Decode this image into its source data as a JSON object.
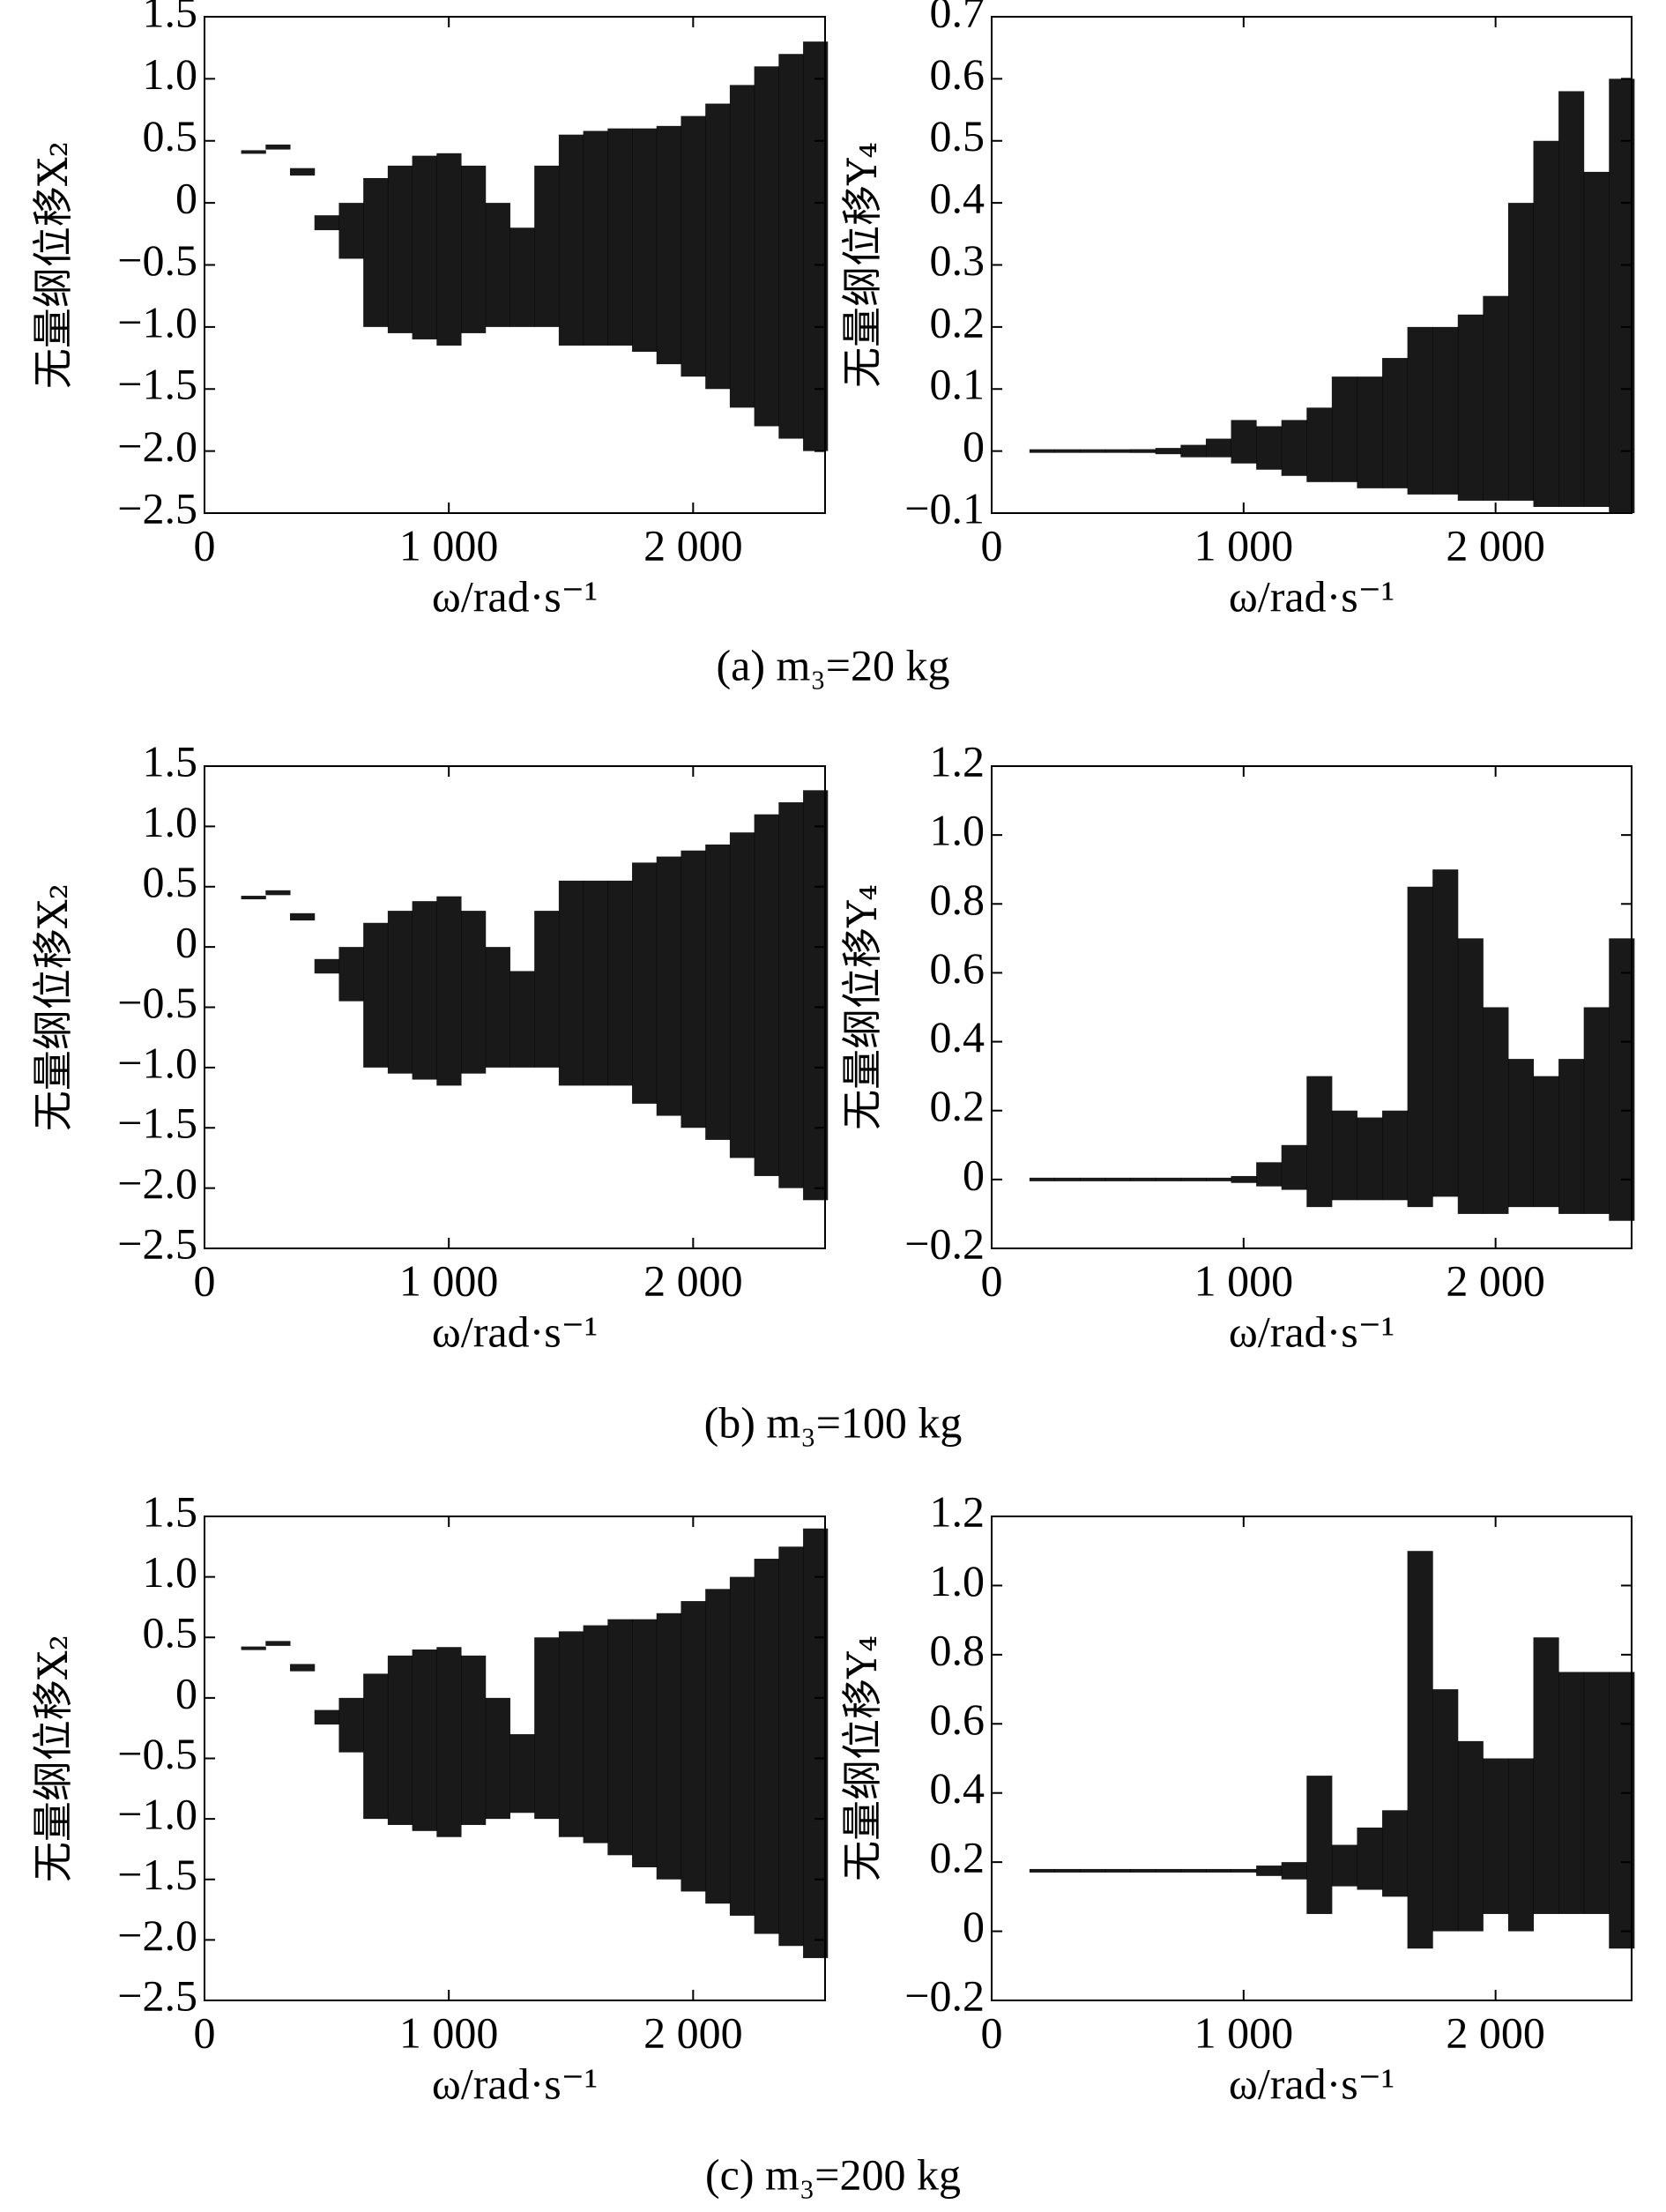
{
  "chart_data": [
    {
      "type": "range",
      "ylabel": "无量纲位移X₂",
      "xlabel": "ω/rad·s⁻¹",
      "color": "#000000",
      "xlim": [
        0,
        2540
      ],
      "ylim": [
        -2.5,
        1.5
      ],
      "xticks": [
        0,
        {
          "value": 1000,
          "label": "1 000"
        },
        {
          "value": 2000,
          "label": "2 000"
        }
      ],
      "yticks": [
        {
          "value": -2.5,
          "label": "−2.5"
        },
        {
          "value": -2.0,
          "label": "−2.0"
        },
        {
          "value": -1.5,
          "label": "−1.5"
        },
        {
          "value": -1.0,
          "label": "−1.0"
        },
        {
          "value": -0.5,
          "label": "−0.5"
        },
        0,
        0.5,
        {
          "value": 1.0,
          "label": "1.0"
        },
        1.5
      ],
      "x": [
        200,
        300,
        400,
        500,
        600,
        700,
        800,
        900,
        1000,
        1100,
        1200,
        1300,
        1400,
        1500,
        1600,
        1700,
        1800,
        1900,
        2000,
        2100,
        2200,
        2300,
        2400,
        2500
      ],
      "low": [
        0.4,
        0.43,
        0.22,
        -0.22,
        -0.45,
        -1.0,
        -1.05,
        -1.1,
        -1.15,
        -1.05,
        -1.0,
        -1.0,
        -1.0,
        -1.15,
        -1.15,
        -1.15,
        -1.2,
        -1.3,
        -1.4,
        -1.5,
        -1.65,
        -1.8,
        -1.9,
        -2.0
      ],
      "high": [
        0.42,
        0.47,
        0.28,
        -0.1,
        0.0,
        0.2,
        0.3,
        0.38,
        0.4,
        0.3,
        0.0,
        -0.2,
        0.3,
        0.55,
        0.58,
        0.6,
        0.6,
        0.62,
        0.7,
        0.8,
        0.95,
        1.1,
        1.2,
        1.3
      ]
    },
    {
      "type": "range",
      "ylabel": "无量纲位移Y₄",
      "xlabel": "ω/rad·s⁻¹",
      "color": "#000000",
      "xlim": [
        0,
        2540
      ],
      "ylim": [
        -0.1,
        0.7
      ],
      "xticks": [
        0,
        {
          "value": 1000,
          "label": "1 000"
        },
        {
          "value": 2000,
          "label": "2 000"
        }
      ],
      "yticks": [
        {
          "value": -0.1,
          "label": "−0.1"
        },
        0,
        0.1,
        0.2,
        0.3,
        0.4,
        0.5,
        0.6,
        0.7
      ],
      "x": [
        200,
        300,
        400,
        500,
        600,
        700,
        800,
        900,
        1000,
        1100,
        1200,
        1300,
        1400,
        1500,
        1600,
        1700,
        1800,
        1900,
        2000,
        2100,
        2200,
        2300,
        2400,
        2500
      ],
      "low": [
        -0.002,
        -0.002,
        -0.002,
        -0.002,
        -0.003,
        -0.005,
        -0.01,
        -0.01,
        -0.02,
        -0.03,
        -0.04,
        -0.05,
        -0.05,
        -0.06,
        -0.06,
        -0.07,
        -0.07,
        -0.08,
        -0.08,
        -0.08,
        -0.09,
        -0.09,
        -0.09,
        -0.1
      ],
      "high": [
        0.002,
        0.002,
        0.002,
        0.002,
        0.003,
        0.005,
        0.01,
        0.02,
        0.05,
        0.04,
        0.05,
        0.07,
        0.12,
        0.12,
        0.15,
        0.2,
        0.2,
        0.22,
        0.25,
        0.4,
        0.5,
        0.58,
        0.45,
        0.6
      ]
    },
    {
      "type": "range",
      "ylabel": "无量纲位移X₂",
      "xlabel": "ω/rad·s⁻¹",
      "color": "#000000",
      "xlim": [
        0,
        2540
      ],
      "ylim": [
        -2.5,
        1.5
      ],
      "xticks": [
        0,
        {
          "value": 1000,
          "label": "1 000"
        },
        {
          "value": 2000,
          "label": "2 000"
        }
      ],
      "yticks": [
        {
          "value": -2.5,
          "label": "−2.5"
        },
        {
          "value": -2.0,
          "label": "−2.0"
        },
        {
          "value": -1.5,
          "label": "−1.5"
        },
        {
          "value": -1.0,
          "label": "−1.0"
        },
        {
          "value": -0.5,
          "label": "−0.5"
        },
        0,
        0.5,
        {
          "value": 1.0,
          "label": "1.0"
        },
        1.5
      ],
      "x": [
        200,
        300,
        400,
        500,
        600,
        700,
        800,
        900,
        1000,
        1100,
        1200,
        1300,
        1400,
        1500,
        1600,
        1700,
        1800,
        1900,
        2000,
        2100,
        2200,
        2300,
        2400,
        2500
      ],
      "low": [
        0.4,
        0.43,
        0.22,
        -0.22,
        -0.45,
        -1.0,
        -1.05,
        -1.1,
        -1.15,
        -1.05,
        -1.0,
        -1.0,
        -1.0,
        -1.15,
        -1.15,
        -1.15,
        -1.3,
        -1.4,
        -1.5,
        -1.6,
        -1.75,
        -1.9,
        -2.0,
        -2.1
      ],
      "high": [
        0.42,
        0.47,
        0.28,
        -0.1,
        0.0,
        0.2,
        0.3,
        0.38,
        0.42,
        0.3,
        0.0,
        -0.2,
        0.3,
        0.55,
        0.55,
        0.55,
        0.7,
        0.75,
        0.8,
        0.85,
        0.95,
        1.1,
        1.2,
        1.3
      ]
    },
    {
      "type": "range",
      "ylabel": "无量纲位移Y₄",
      "xlabel": "ω/rad·s⁻¹",
      "color": "#000000",
      "xlim": [
        0,
        2540
      ],
      "ylim": [
        -0.2,
        1.2
      ],
      "xticks": [
        0,
        {
          "value": 1000,
          "label": "1 000"
        },
        {
          "value": 2000,
          "label": "2 000"
        }
      ],
      "yticks": [
        {
          "value": -0.2,
          "label": "−0.2"
        },
        0,
        0.2,
        0.4,
        0.6,
        0.8,
        {
          "value": 1.0,
          "label": "1.0"
        },
        1.2
      ],
      "x": [
        200,
        300,
        400,
        500,
        600,
        700,
        800,
        900,
        1000,
        1100,
        1200,
        1300,
        1400,
        1500,
        1600,
        1700,
        1800,
        1900,
        2000,
        2100,
        2200,
        2300,
        2400,
        2500
      ],
      "low": [
        -0.005,
        -0.005,
        -0.005,
        -0.005,
        -0.005,
        -0.005,
        -0.005,
        -0.005,
        -0.01,
        -0.02,
        -0.03,
        -0.08,
        -0.06,
        -0.06,
        -0.06,
        -0.08,
        -0.05,
        -0.1,
        -0.1,
        -0.08,
        -0.08,
        -0.1,
        -0.1,
        -0.12
      ],
      "high": [
        0.005,
        0.005,
        0.005,
        0.005,
        0.005,
        0.005,
        0.005,
        0.005,
        0.01,
        0.05,
        0.1,
        0.3,
        0.2,
        0.18,
        0.2,
        0.85,
        0.9,
        0.7,
        0.5,
        0.35,
        0.3,
        0.35,
        0.5,
        0.7
      ]
    },
    {
      "type": "range",
      "ylabel": "无量纲位移X₂",
      "xlabel": "ω/rad·s⁻¹",
      "color": "#000000",
      "xlim": [
        0,
        2540
      ],
      "ylim": [
        -2.5,
        1.5
      ],
      "xticks": [
        0,
        {
          "value": 1000,
          "label": "1 000"
        },
        {
          "value": 2000,
          "label": "2 000"
        }
      ],
      "yticks": [
        {
          "value": -2.5,
          "label": "−2.5"
        },
        {
          "value": -2.0,
          "label": "−2.0"
        },
        {
          "value": -1.5,
          "label": "−1.5"
        },
        {
          "value": -1.0,
          "label": "−1.0"
        },
        {
          "value": -0.5,
          "label": "−0.5"
        },
        0,
        0.5,
        {
          "value": 1.0,
          "label": "1.0"
        },
        1.5
      ],
      "x": [
        200,
        300,
        400,
        500,
        600,
        700,
        800,
        900,
        1000,
        1100,
        1200,
        1300,
        1400,
        1500,
        1600,
        1700,
        1800,
        1900,
        2000,
        2100,
        2200,
        2300,
        2400,
        2500
      ],
      "low": [
        0.4,
        0.43,
        0.22,
        -0.22,
        -0.45,
        -1.0,
        -1.05,
        -1.1,
        -1.15,
        -1.05,
        -1.0,
        -0.95,
        -1.0,
        -1.15,
        -1.2,
        -1.3,
        -1.4,
        -1.5,
        -1.6,
        -1.7,
        -1.8,
        -1.95,
        -2.05,
        -2.15
      ],
      "high": [
        0.42,
        0.47,
        0.28,
        -0.1,
        0.0,
        0.2,
        0.35,
        0.4,
        0.42,
        0.35,
        0.0,
        -0.3,
        0.5,
        0.55,
        0.6,
        0.65,
        0.65,
        0.7,
        0.8,
        0.9,
        1.0,
        1.15,
        1.25,
        1.4
      ]
    },
    {
      "type": "range",
      "ylabel": "无量纲位移Y₄",
      "xlabel": "ω/rad·s⁻¹",
      "color": "#000000",
      "xlim": [
        0,
        2540
      ],
      "ylim": [
        -0.2,
        1.2
      ],
      "xticks": [
        0,
        {
          "value": 1000,
          "label": "1 000"
        },
        {
          "value": 2000,
          "label": "2 000"
        }
      ],
      "yticks": [
        {
          "value": -0.2,
          "label": "−0.2"
        },
        0,
        0.2,
        0.4,
        0.6,
        0.8,
        {
          "value": 1.0,
          "label": "1.0"
        },
        1.2
      ],
      "x": [
        200,
        300,
        400,
        500,
        600,
        700,
        800,
        900,
        1000,
        1100,
        1200,
        1300,
        1400,
        1500,
        1600,
        1700,
        1800,
        1900,
        2000,
        2100,
        2200,
        2300,
        2400,
        2500
      ],
      "low": [
        0.17,
        0.17,
        0.17,
        0.17,
        0.17,
        0.17,
        0.17,
        0.17,
        0.17,
        0.16,
        0.15,
        0.05,
        0.13,
        0.12,
        0.1,
        -0.05,
        0.0,
        0.0,
        0.05,
        0.0,
        0.05,
        0.05,
        0.05,
        -0.05
      ],
      "high": [
        0.18,
        0.18,
        0.18,
        0.18,
        0.18,
        0.18,
        0.18,
        0.18,
        0.18,
        0.19,
        0.2,
        0.45,
        0.25,
        0.3,
        0.35,
        1.1,
        0.7,
        0.55,
        0.5,
        0.5,
        0.85,
        0.75,
        0.75,
        0.75
      ]
    }
  ],
  "captions": [
    "(a) m₃=20 kg",
    "(b) m₃=100 kg",
    "(c) m₃=200 kg"
  ]
}
